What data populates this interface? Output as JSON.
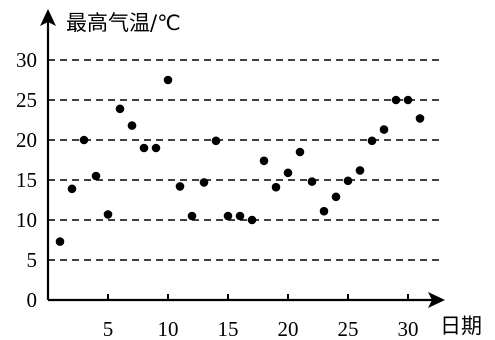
{
  "chart_data": {
    "type": "scatter",
    "ylabel": "最高气温/℃",
    "xlabel": "日期",
    "xlim": [
      0,
      31
    ],
    "ylim": [
      0,
      30
    ],
    "x_ticks": [
      5,
      10,
      15,
      20,
      25,
      30
    ],
    "y_ticks": [
      0,
      5,
      10,
      15,
      20,
      25,
      30
    ],
    "grid": "horizontal-dashed",
    "series": [
      {
        "x": [
          1,
          2,
          3,
          4,
          5,
          6,
          7,
          8,
          9,
          10,
          11,
          12,
          13,
          14,
          15,
          16,
          17,
          18,
          19,
          20,
          21,
          22,
          23,
          24,
          25,
          26,
          27,
          28,
          29,
          30,
          31
        ],
        "y": [
          7.3,
          13.9,
          20,
          15.5,
          10.7,
          23.9,
          21.8,
          19,
          19,
          27.5,
          14.2,
          10.5,
          14.7,
          19.9,
          10.5,
          10.5,
          10,
          17.4,
          14.1,
          15.9,
          18.5,
          14.8,
          11.1,
          12.9,
          14.9,
          16.2,
          19.9,
          21.3,
          25,
          25,
          22.7
        ]
      }
    ]
  }
}
